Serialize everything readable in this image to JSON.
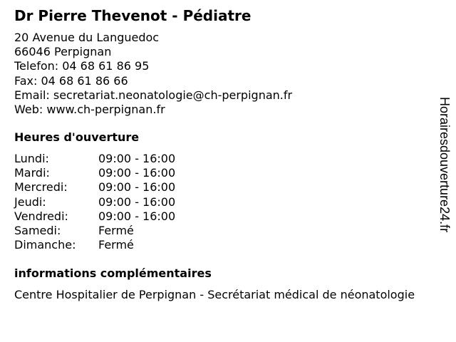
{
  "title": "Dr Pierre Thevenot - Pédiatre",
  "contact": {
    "address": "20 Avenue du Languedoc",
    "city": "66046 Perpignan",
    "phone": "Telefon: 04 68 61 86 95",
    "fax": "Fax: 04 68 61 86 66",
    "email": "Email: secretariat.neonatologie@ch-perpignan.fr",
    "web": "Web: www.ch-perpignan.fr"
  },
  "hours": {
    "heading": "Heures d'ouverture",
    "days": [
      {
        "day": "Lundi:",
        "time": "09:00 - 16:00"
      },
      {
        "day": "Mardi:",
        "time": "09:00 - 16:00"
      },
      {
        "day": "Mercredi:",
        "time": "09:00 - 16:00"
      },
      {
        "day": "Jeudi:",
        "time": "09:00 - 16:00"
      },
      {
        "day": "Vendredi:",
        "time": "09:00 - 16:00"
      },
      {
        "day": "Samedi:",
        "time": "Fermé"
      },
      {
        "day": "Dimanche:",
        "time": "Fermé"
      }
    ]
  },
  "info": {
    "heading": "informations complémentaires",
    "text": "Centre Hospitalier de Perpignan - Secrétariat médical de néonatologie"
  },
  "watermark": "Horairesdouverture24.fr"
}
